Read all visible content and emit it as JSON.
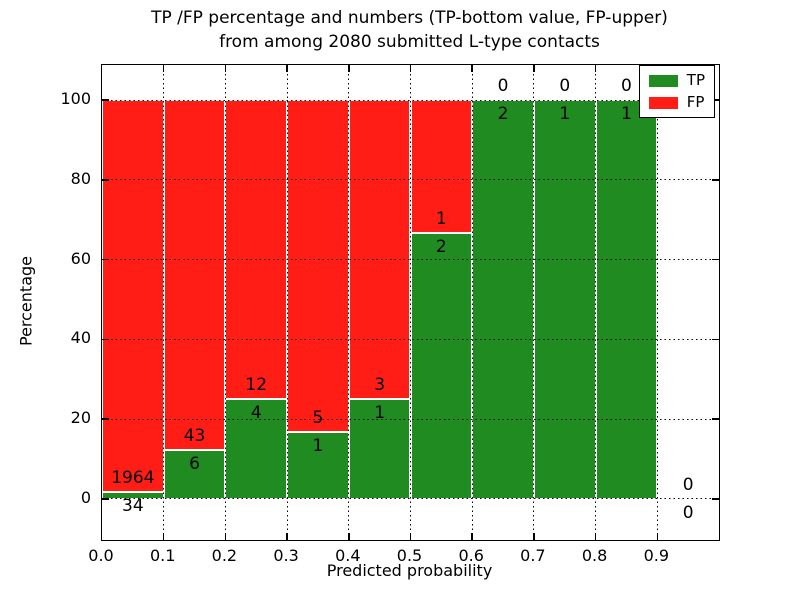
{
  "chart_data": {
    "type": "bar",
    "stacked": true,
    "percent_normalized": true,
    "title_lines": [
      "TP /FP percentage and numbers (TP-bottom value, FP-upper)",
      "from among 2080 submitted L-type contacts"
    ],
    "xlabel": "Predicted probability",
    "ylabel": "Percentage",
    "total_contacts": 2080,
    "bin_edges": [
      0.0,
      0.1,
      0.2,
      0.3,
      0.4,
      0.5,
      0.6,
      0.7,
      0.8,
      0.9,
      1.0
    ],
    "categories": [
      "0.0-0.1",
      "0.1-0.2",
      "0.2-0.3",
      "0.3-0.4",
      "0.4-0.5",
      "0.5-0.6",
      "0.6-0.7",
      "0.7-0.8",
      "0.8-0.9",
      "0.9-1.0"
    ],
    "series": [
      {
        "name": "TP",
        "color": "#1f8b21",
        "counts": [
          34,
          6,
          4,
          1,
          1,
          2,
          2,
          1,
          1,
          0
        ]
      },
      {
        "name": "FP",
        "color": "#ff1d16",
        "counts": [
          1964,
          43,
          12,
          5,
          3,
          1,
          0,
          0,
          0,
          0
        ]
      }
    ],
    "tp_percent_of_bin": [
      1.7,
      12.24,
      25.0,
      16.67,
      25.0,
      66.67,
      100.0,
      100.0,
      100.0,
      null
    ],
    "x_ticks": [
      "0.0",
      "0.1",
      "0.2",
      "0.3",
      "0.4",
      "0.5",
      "0.6",
      "0.7",
      "0.8",
      "0.9"
    ],
    "y_ticks": [
      0,
      20,
      40,
      60,
      80,
      100
    ],
    "xlim": [
      0.0,
      1.0
    ],
    "ylim": [
      -10.3,
      108.8
    ],
    "grid": "dotted",
    "legend": {
      "position": "upper right",
      "entries": [
        {
          "label": "TP",
          "color": "#1f8b21"
        },
        {
          "label": "FP",
          "color": "#ff1d16"
        }
      ]
    }
  }
}
